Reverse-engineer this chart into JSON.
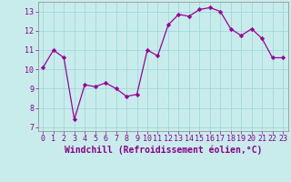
{
  "x": [
    0,
    1,
    2,
    3,
    4,
    5,
    6,
    7,
    8,
    9,
    10,
    11,
    12,
    13,
    14,
    15,
    16,
    17,
    18,
    19,
    20,
    21,
    22,
    23
  ],
  "y": [
    10.1,
    11.0,
    10.6,
    7.4,
    9.2,
    9.1,
    9.3,
    9.0,
    8.6,
    8.7,
    11.0,
    10.7,
    12.3,
    12.85,
    12.75,
    13.1,
    13.2,
    13.0,
    12.1,
    11.75,
    12.1,
    11.6,
    10.6,
    10.6
  ],
  "line_color": "#990099",
  "marker": "D",
  "marker_size": 2.2,
  "bg_color": "#c8ecec",
  "grid_color": "#a0d8d8",
  "xlabel": "Windchill (Refroidissement éolien,°C)",
  "xlim": [
    -0.5,
    23.5
  ],
  "ylim": [
    6.8,
    13.5
  ],
  "yticks": [
    7,
    8,
    9,
    10,
    11,
    12,
    13
  ],
  "xticks": [
    0,
    1,
    2,
    3,
    4,
    5,
    6,
    7,
    8,
    9,
    10,
    11,
    12,
    13,
    14,
    15,
    16,
    17,
    18,
    19,
    20,
    21,
    22,
    23
  ],
  "xlabel_fontsize": 7.0,
  "tick_fontsize": 6.0,
  "label_color": "#880088",
  "tick_color": "#880088"
}
